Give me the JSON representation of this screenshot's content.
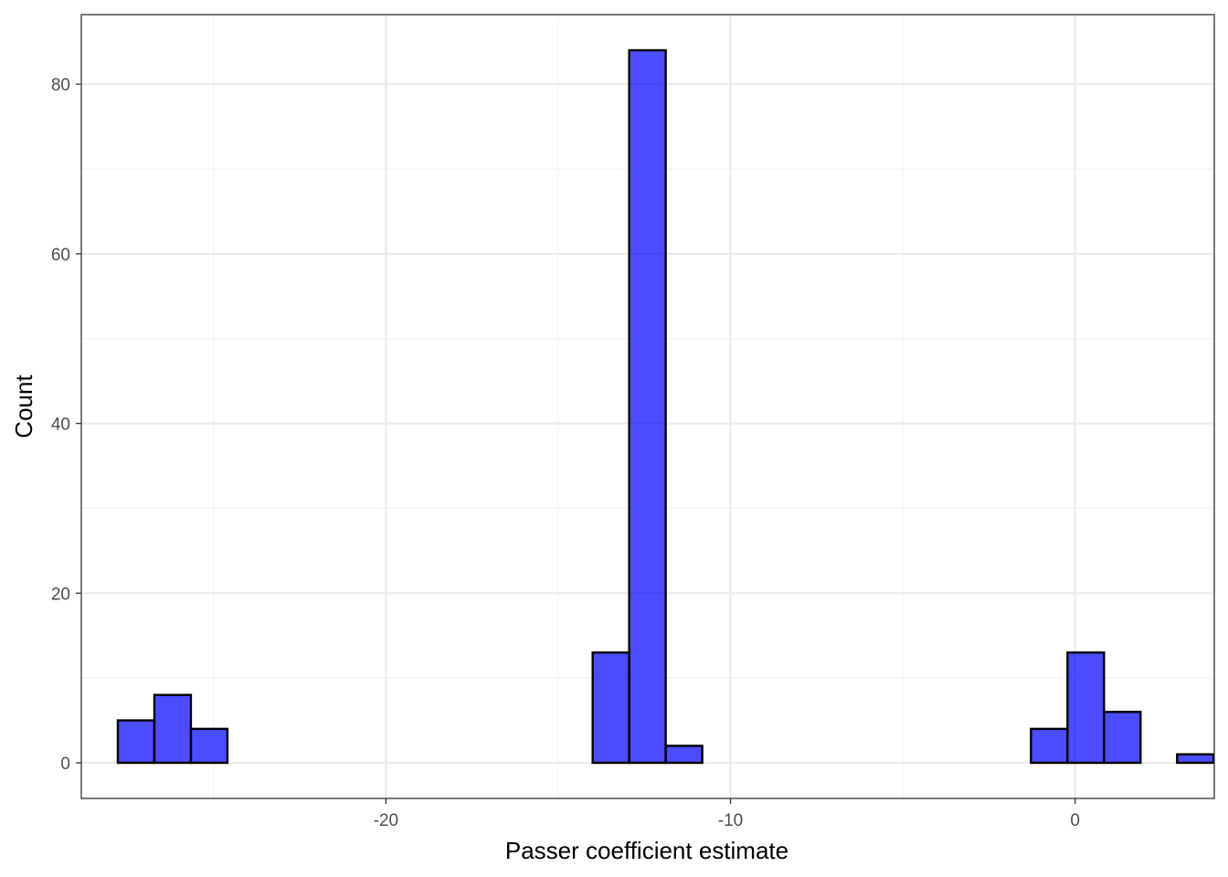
{
  "chart_data": {
    "type": "bar",
    "subtype": "histogram",
    "title": "",
    "xlabel": "Passer coefficient estimate",
    "ylabel": "Count",
    "xlim": [
      -28.84,
      4.04
    ],
    "ylim": [
      -4.2,
      88.2
    ],
    "x_ticks": [
      -20,
      -10,
      0
    ],
    "x_tick_labels": [
      "-20",
      "-10",
      "0"
    ],
    "x_minor_ticks": [
      -25,
      -15,
      -5
    ],
    "y_ticks": [
      0,
      20,
      40,
      60,
      80
    ],
    "y_tick_labels": [
      "0",
      "20",
      "40",
      "60",
      "80"
    ],
    "y_minor_ticks": [
      10,
      30,
      50,
      70
    ],
    "grid": true,
    "legend": "none",
    "bin_width": 1.06,
    "bins": [
      {
        "x_start": -27.78,
        "x_end": -26.72,
        "count": 5
      },
      {
        "x_start": -26.72,
        "x_end": -25.66,
        "count": 8
      },
      {
        "x_start": -25.66,
        "x_end": -24.6,
        "count": 4
      },
      {
        "x_start": -24.6,
        "x_end": -23.54,
        "count": 0
      },
      {
        "x_start": -23.54,
        "x_end": -22.48,
        "count": 0
      },
      {
        "x_start": -22.48,
        "x_end": -21.42,
        "count": 0
      },
      {
        "x_start": -21.42,
        "x_end": -20.36,
        "count": 0
      },
      {
        "x_start": -20.36,
        "x_end": -19.3,
        "count": 0
      },
      {
        "x_start": -19.3,
        "x_end": -18.24,
        "count": 0
      },
      {
        "x_start": -18.24,
        "x_end": -17.18,
        "count": 0
      },
      {
        "x_start": -17.18,
        "x_end": -16.12,
        "count": 0
      },
      {
        "x_start": -16.12,
        "x_end": -15.06,
        "count": 0
      },
      {
        "x_start": -15.06,
        "x_end": -14.0,
        "count": 0
      },
      {
        "x_start": -14.0,
        "x_end": -12.94,
        "count": 13
      },
      {
        "x_start": -12.94,
        "x_end": -11.88,
        "count": 84
      },
      {
        "x_start": -11.88,
        "x_end": -10.82,
        "count": 2
      },
      {
        "x_start": -10.82,
        "x_end": -9.76,
        "count": 0
      },
      {
        "x_start": -9.76,
        "x_end": -8.7,
        "count": 0
      },
      {
        "x_start": -8.7,
        "x_end": -7.64,
        "count": 0
      },
      {
        "x_start": -7.64,
        "x_end": -6.58,
        "count": 0
      },
      {
        "x_start": -6.58,
        "x_end": -5.52,
        "count": 0
      },
      {
        "x_start": -5.52,
        "x_end": -4.46,
        "count": 0
      },
      {
        "x_start": -4.46,
        "x_end": -3.4,
        "count": 0
      },
      {
        "x_start": -3.4,
        "x_end": -2.34,
        "count": 0
      },
      {
        "x_start": -2.34,
        "x_end": -1.28,
        "count": 0
      },
      {
        "x_start": -1.28,
        "x_end": -0.22,
        "count": 4
      },
      {
        "x_start": -0.22,
        "x_end": 0.84,
        "count": 13
      },
      {
        "x_start": 0.84,
        "x_end": 1.9,
        "count": 6
      },
      {
        "x_start": 1.9,
        "x_end": 2.96,
        "count": 0
      },
      {
        "x_start": 2.96,
        "x_end": 4.02,
        "count": 1
      }
    ],
    "colors": {
      "bar_fill": "#0000ff",
      "bar_fill_opacity": 0.7,
      "bar_outline": "#000000",
      "panel_border": "#333333",
      "grid_major": "#ebebeb",
      "grid_minor": "#f2f2f2",
      "tick_label": "#4d4d4d"
    }
  }
}
